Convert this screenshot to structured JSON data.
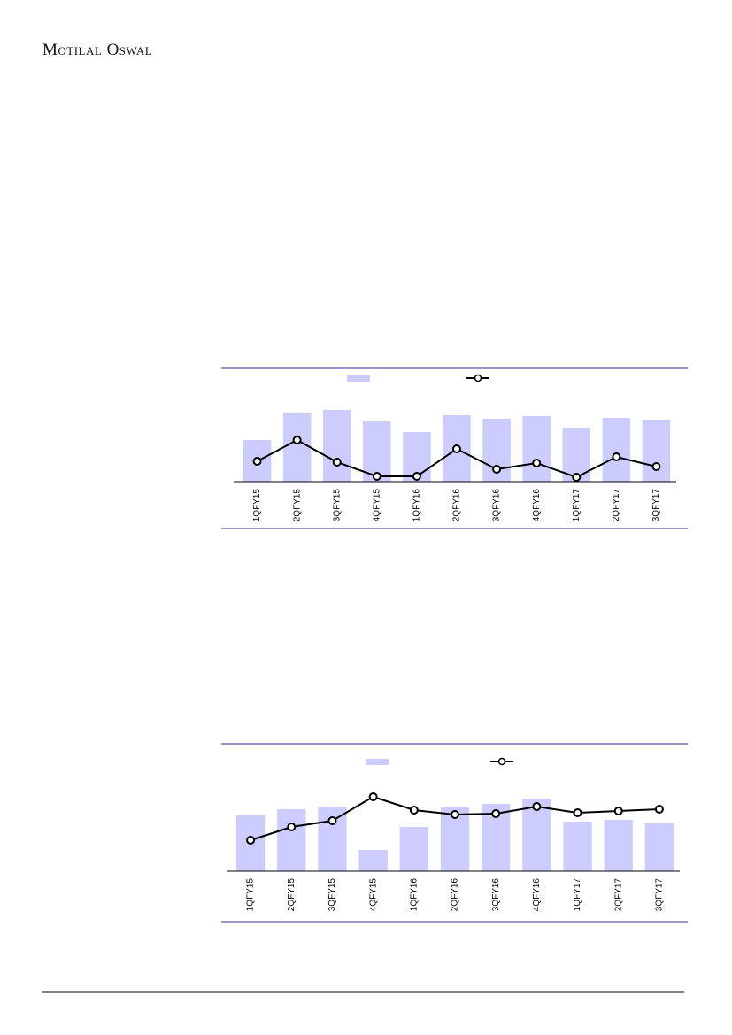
{
  "header": {
    "brand": "Motilal Oswal"
  },
  "chart_data": [
    {
      "type": "bar-line",
      "categories": [
        "1QFY15",
        "2QFY15",
        "3QFY15",
        "4QFY15",
        "1QFY16",
        "2QFY16",
        "3QFY16",
        "4QFY16",
        "1QFY17",
        "2QFY17",
        "3QFY17"
      ],
      "series": [
        {
          "type": "bar",
          "color": "#ccccff",
          "values": [
            47,
            77,
            81,
            68,
            56,
            75,
            71,
            74,
            61,
            72,
            70
          ]
        },
        {
          "type": "line",
          "color": "#000000",
          "values": [
            23,
            47,
            22,
            6,
            6,
            37,
            14,
            21,
            5,
            28,
            17
          ]
        }
      ],
      "ylim": [
        0,
        110
      ]
    },
    {
      "type": "bar-line",
      "categories": [
        "1QFY15",
        "2QFY15",
        "3QFY15",
        "4QFY15",
        "1QFY16",
        "2QFY16",
        "3QFY16",
        "4QFY16",
        "1QFY17",
        "2QFY17",
        "3QFY17"
      ],
      "series": [
        {
          "type": "bar",
          "color": "#ccccff",
          "values": [
            63,
            70,
            73,
            24,
            50,
            72,
            76,
            82,
            56,
            58,
            54
          ]
        },
        {
          "type": "line",
          "color": "#000000",
          "values": [
            35,
            50,
            57,
            84,
            69,
            64,
            65,
            73,
            66,
            68,
            70
          ]
        }
      ],
      "ylim": [
        0,
        110
      ]
    }
  ]
}
